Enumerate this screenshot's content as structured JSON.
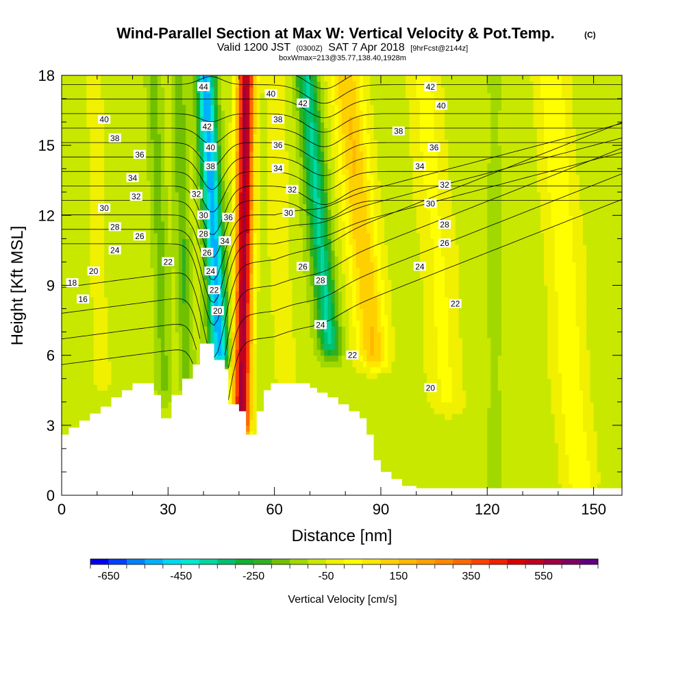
{
  "chart_data": {
    "type": "heatmap",
    "title": "Wind-Parallel Section at Max W: Vertical Velocity & Pot.Temp.",
    "title_suffix": "(C)",
    "valid_line": {
      "prefix": "Valid 1200 JST",
      "utc": "(0300Z)",
      "date": "SAT 7 Apr 2018",
      "fcst": "[9hrFcst@2144z]"
    },
    "box_line": "boxWmax=213@35.77,138.40,1928m",
    "xlabel": "Distance [nm]",
    "ylabel": "Height [Kft MSL]",
    "xlim": [
      0,
      158
    ],
    "ylim": [
      0,
      18
    ],
    "x_ticks": [
      0,
      30,
      60,
      90,
      120,
      150
    ],
    "x_tick_labels": [
      "0",
      "30",
      "60",
      "90",
      "120",
      "150"
    ],
    "y_ticks": [
      0,
      3,
      6,
      9,
      12,
      15,
      18
    ],
    "y_tick_labels": [
      "0",
      "3",
      "6",
      "9",
      "12",
      "15",
      "18"
    ],
    "colorbar": {
      "label": "Vertical Velocity [cm/s]",
      "tick_labels": [
        "-650",
        "-450",
        "-250",
        "-50",
        "150",
        "350",
        "550"
      ],
      "tick_values": [
        -650,
        -450,
        -250,
        -50,
        150,
        350,
        550
      ],
      "colors": [
        "#0000f0",
        "#0040ff",
        "#0080ff",
        "#00b0ff",
        "#00d8f0",
        "#00e8d0",
        "#00d8a0",
        "#00c070",
        "#10b030",
        "#30b020",
        "#70c000",
        "#a0d800",
        "#c8e800",
        "#f0f000",
        "#ffff00",
        "#ffe800",
        "#ffd000",
        "#ffb800",
        "#ffa000",
        "#ff8800",
        "#ff6800",
        "#ff4000",
        "#f02000",
        "#d80000",
        "#c00020",
        "#a00040",
        "#800060",
        "#600080"
      ]
    },
    "terrain": [
      [
        0,
        2.6
      ],
      [
        2,
        2.6
      ],
      [
        2,
        2.9
      ],
      [
        5,
        2.9
      ],
      [
        5,
        3.2
      ],
      [
        8,
        3.2
      ],
      [
        8,
        3.5
      ],
      [
        11,
        3.5
      ],
      [
        11,
        3.8
      ],
      [
        14,
        3.8
      ],
      [
        14,
        4.2
      ],
      [
        17,
        4.2
      ],
      [
        17,
        4.5
      ],
      [
        20,
        4.5
      ],
      [
        20,
        4.8
      ],
      [
        26,
        4.8
      ],
      [
        26,
        4.3
      ],
      [
        28,
        4.3
      ],
      [
        28,
        3.3
      ],
      [
        31,
        3.3
      ],
      [
        31,
        4.3
      ],
      [
        34,
        4.3
      ],
      [
        34,
        5.0
      ],
      [
        37,
        5.0
      ],
      [
        37,
        5.6
      ],
      [
        39,
        5.6
      ],
      [
        39,
        6.5
      ],
      [
        43,
        6.5
      ],
      [
        43,
        5.8
      ],
      [
        46,
        5.8
      ],
      [
        46,
        5.4
      ],
      [
        47,
        5.4
      ],
      [
        47,
        3.9
      ],
      [
        50,
        3.9
      ],
      [
        50,
        3.6
      ],
      [
        52,
        3.6
      ],
      [
        52,
        2.6
      ],
      [
        55,
        2.6
      ],
      [
        55,
        3.6
      ],
      [
        57,
        3.6
      ],
      [
        57,
        4.5
      ],
      [
        59,
        4.5
      ],
      [
        59,
        4.8
      ],
      [
        70,
        4.8
      ],
      [
        70,
        4.6
      ],
      [
        72,
        4.6
      ],
      [
        72,
        4.4
      ],
      [
        75,
        4.4
      ],
      [
        75,
        4.2
      ],
      [
        78,
        4.2
      ],
      [
        78,
        3.9
      ],
      [
        81,
        3.9
      ],
      [
        81,
        3.6
      ],
      [
        84,
        3.6
      ],
      [
        84,
        3.3
      ],
      [
        86,
        3.3
      ],
      [
        86,
        2.6
      ],
      [
        88,
        2.6
      ],
      [
        88,
        1.5
      ],
      [
        90,
        1.5
      ],
      [
        90,
        1.0
      ],
      [
        93,
        1.0
      ],
      [
        93,
        0.7
      ],
      [
        96,
        0.7
      ],
      [
        96,
        0.4
      ],
      [
        100,
        0.4
      ],
      [
        100,
        0.3
      ],
      [
        158,
        0.3
      ]
    ],
    "w_bands": [
      {
        "name": "downdraft",
        "x_bottom": 46.5,
        "x_top": 40.5,
        "half_width": 2.6,
        "peak": -450,
        "y_min": 6.0
      },
      {
        "name": "updraft",
        "x_bottom": 50.5,
        "x_top": 52.0,
        "half_width": 2.4,
        "peak": 650,
        "y_min": 3.0
      },
      {
        "name": "downdraft2",
        "x_bottom": 79,
        "x_top": 69,
        "half_width": 3.0,
        "peak": -280,
        "y_min": 6.5
      },
      {
        "name": "updraft2",
        "x_bottom": 92,
        "x_top": 80,
        "half_width": 4.5,
        "peak": 230,
        "y_min": 6.0
      },
      {
        "name": "updraft3",
        "x_bottom": 111,
        "x_top": 102,
        "half_width": 5.0,
        "peak": 90,
        "y_min": 4.0
      },
      {
        "name": "updraft4",
        "x_bottom": 146,
        "x_top": 138,
        "half_width": 5.0,
        "peak": 110,
        "y_min": 0.5
      },
      {
        "name": "greenstrip1",
        "x_bottom": 30,
        "x_top": 26,
        "half_width": 2.0,
        "peak": -90,
        "y_min": 4.5
      },
      {
        "name": "greenstrip2",
        "x_bottom": 36,
        "x_top": 33,
        "half_width": 1.8,
        "peak": -120,
        "y_min": 5.0
      },
      {
        "name": "greenstrip3",
        "x_bottom": 122,
        "x_top": 122,
        "half_width": 1.6,
        "peak": -60,
        "y_min": 0.5
      },
      {
        "name": "yellowstrip1",
        "x_bottom": 12,
        "x_top": 9,
        "half_width": 2.5,
        "peak": 60,
        "y_min": 5.0
      },
      {
        "name": "yellowstrip2",
        "x_bottom": 64,
        "x_top": 60,
        "half_width": 3.0,
        "peak": 70,
        "y_min": 5.0
      }
    ],
    "theta_levels": [
      16,
      17,
      18,
      19,
      20,
      21,
      22,
      23,
      24,
      25,
      26,
      27,
      28,
      29,
      30,
      31,
      32,
      33,
      34,
      35,
      36,
      37,
      38,
      39,
      40,
      41,
      42,
      43,
      44
    ],
    "contour_labels": [
      {
        "text": "40",
        "x": 12,
        "y": 16.1
      },
      {
        "text": "38",
        "x": 15,
        "y": 15.3
      },
      {
        "text": "36",
        "x": 22,
        "y": 14.6
      },
      {
        "text": "34",
        "x": 20,
        "y": 13.6
      },
      {
        "text": "32",
        "x": 21,
        "y": 12.8
      },
      {
        "text": "30",
        "x": 12,
        "y": 12.3
      },
      {
        "text": "28",
        "x": 15,
        "y": 11.5
      },
      {
        "text": "26",
        "x": 22,
        "y": 11.1
      },
      {
        "text": "24",
        "x": 15,
        "y": 10.5
      },
      {
        "text": "22",
        "x": 30,
        "y": 10.0
      },
      {
        "text": "20",
        "x": 9,
        "y": 9.6
      },
      {
        "text": "18",
        "x": 3,
        "y": 9.1
      },
      {
        "text": "16",
        "x": 6,
        "y": 8.4
      },
      {
        "text": "44",
        "x": 40,
        "y": 17.5
      },
      {
        "text": "42",
        "x": 41,
        "y": 15.8
      },
      {
        "text": "40",
        "x": 42,
        "y": 14.9
      },
      {
        "text": "38",
        "x": 42,
        "y": 14.1
      },
      {
        "text": "32",
        "x": 38,
        "y": 12.9
      },
      {
        "text": "30",
        "x": 40,
        "y": 12.0
      },
      {
        "text": "28",
        "x": 40,
        "y": 11.2
      },
      {
        "text": "26",
        "x": 41,
        "y": 10.4
      },
      {
        "text": "24",
        "x": 42,
        "y": 9.6
      },
      {
        "text": "22",
        "x": 43,
        "y": 8.8
      },
      {
        "text": "20",
        "x": 44,
        "y": 7.9
      },
      {
        "text": "36",
        "x": 47,
        "y": 11.9
      },
      {
        "text": "34",
        "x": 46,
        "y": 10.9
      },
      {
        "text": "40",
        "x": 59,
        "y": 17.2
      },
      {
        "text": "42",
        "x": 68,
        "y": 16.8
      },
      {
        "text": "38",
        "x": 61,
        "y": 16.1
      },
      {
        "text": "36",
        "x": 61,
        "y": 15.0
      },
      {
        "text": "34",
        "x": 61,
        "y": 14.0
      },
      {
        "text": "32",
        "x": 65,
        "y": 13.1
      },
      {
        "text": "30",
        "x": 64,
        "y": 12.1
      },
      {
        "text": "26",
        "x": 68,
        "y": 9.8
      },
      {
        "text": "28",
        "x": 73,
        "y": 9.2
      },
      {
        "text": "24",
        "x": 73,
        "y": 7.3
      },
      {
        "text": "22",
        "x": 82,
        "y": 6.0
      },
      {
        "text": "20",
        "x": 104,
        "y": 4.6
      },
      {
        "text": "42",
        "x": 104,
        "y": 17.5
      },
      {
        "text": "40",
        "x": 107,
        "y": 16.7
      },
      {
        "text": "38",
        "x": 95,
        "y": 15.6
      },
      {
        "text": "36",
        "x": 105,
        "y": 14.9
      },
      {
        "text": "34",
        "x": 101,
        "y": 14.1
      },
      {
        "text": "32",
        "x": 108,
        "y": 13.3
      },
      {
        "text": "30",
        "x": 104,
        "y": 12.5
      },
      {
        "text": "28",
        "x": 108,
        "y": 11.6
      },
      {
        "text": "26",
        "x": 108,
        "y": 10.8
      },
      {
        "text": "24",
        "x": 101,
        "y": 9.8
      },
      {
        "text": "22",
        "x": 111,
        "y": 8.2
      }
    ]
  }
}
